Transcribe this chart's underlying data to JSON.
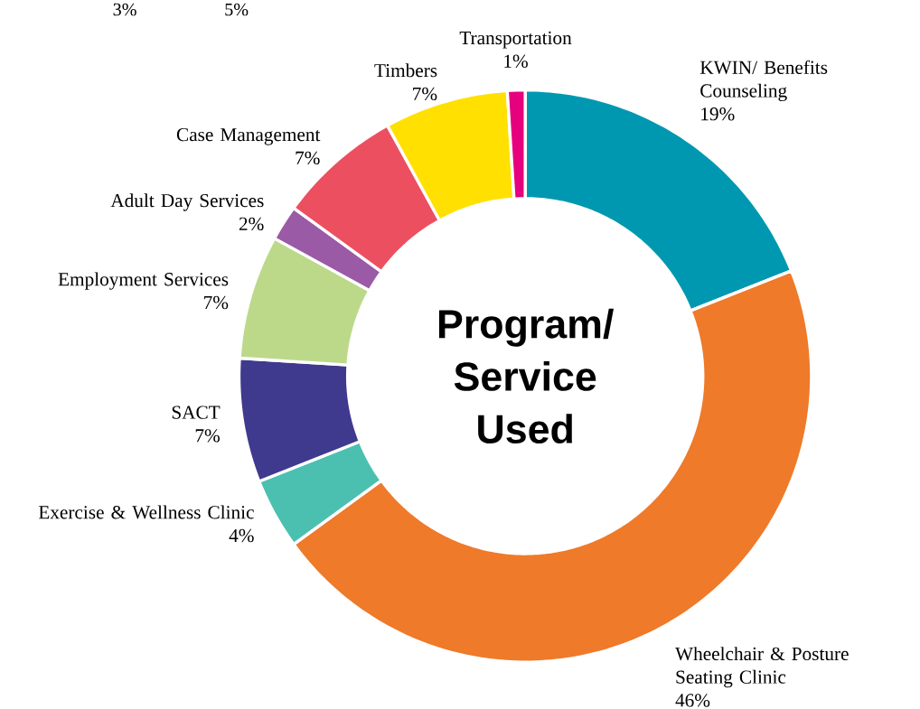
{
  "chart_data": {
    "type": "donut",
    "title": "Program/ Service Used",
    "categories": [
      "KWIN/ Benefits Counseling",
      "Wheelchair & Posture Seating Clinic",
      "Exercise & Wellness Clinic",
      "SACT",
      "Employment Services",
      "Adult Day Services",
      "Case Management",
      "Timbers",
      "Transportation"
    ],
    "values": [
      19,
      46,
      4,
      7,
      7,
      2,
      7,
      7,
      1
    ],
    "value_labels": [
      "19%",
      "46%",
      "4%",
      "7%",
      "7%",
      "2%",
      "7%",
      "7%",
      "1%"
    ],
    "colors": [
      "#0098b0",
      "#ee7a2a",
      "#4cc0b0",
      "#3f3a8e",
      "#bcd98a",
      "#9a5aa6",
      "#ec5060",
      "#ffe000",
      "#e6007e"
    ],
    "annotations": [
      "3%",
      "5%"
    ]
  }
}
